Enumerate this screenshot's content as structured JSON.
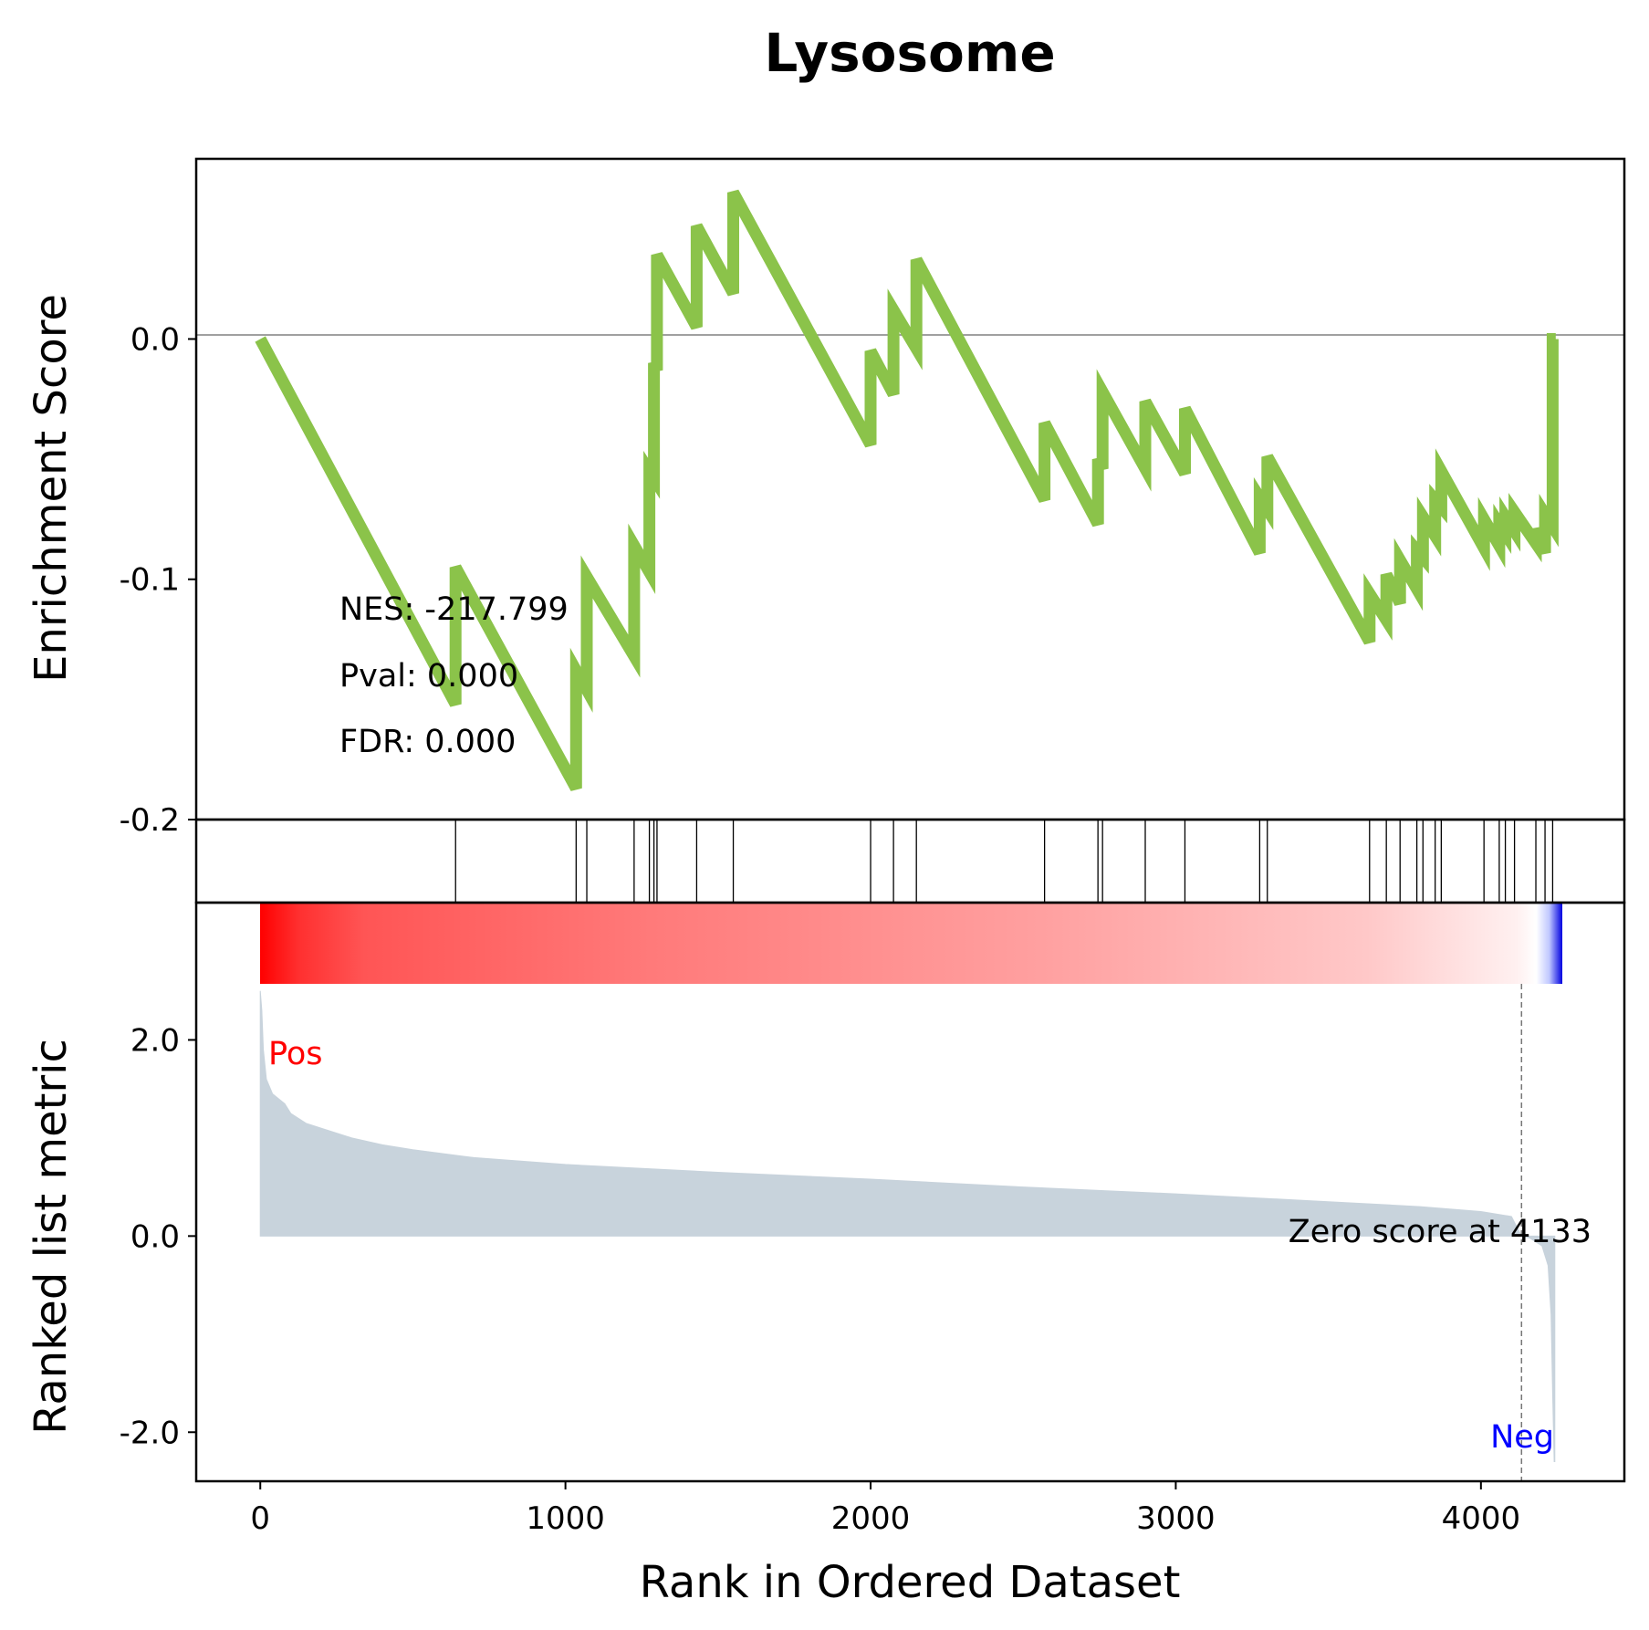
{
  "chart_data": {
    "type": "line",
    "title": "Lysosome",
    "xlabel": "Rank in Ordered Dataset",
    "xlim": [
      -210,
      4470
    ],
    "x_ticks": [
      "0",
      "1000",
      "2000",
      "3000",
      "4000"
    ],
    "x_tick_values": [
      0,
      1000,
      2000,
      3000,
      4000
    ],
    "enrichment": {
      "ylabel": "Enrichment Score",
      "ylim": [
        -0.2,
        0.075
      ],
      "y_ticks": [
        "0.0",
        "-0.1",
        "-0.2"
      ],
      "y_tick_values": [
        0.0,
        -0.1,
        -0.2
      ],
      "line_color": "#8bc34a",
      "points": [
        [
          0,
          0.0
        ],
        [
          640,
          -0.152
        ],
        [
          640,
          -0.095
        ],
        [
          1035,
          -0.187
        ],
        [
          1035,
          -0.138
        ],
        [
          1070,
          -0.146
        ],
        [
          1070,
          -0.099
        ],
        [
          1225,
          -0.132
        ],
        [
          1225,
          -0.086
        ],
        [
          1275,
          -0.097
        ],
        [
          1275,
          -0.055
        ],
        [
          1290,
          -0.058
        ],
        [
          1290,
          -0.01
        ],
        [
          1300,
          -0.013
        ],
        [
          1300,
          0.035
        ],
        [
          1430,
          0.005
        ],
        [
          1430,
          0.047
        ],
        [
          1550,
          0.019
        ],
        [
          1550,
          0.061
        ],
        [
          2000,
          -0.044
        ],
        [
          2000,
          -0.005
        ],
        [
          2075,
          -0.023
        ],
        [
          2075,
          0.012
        ],
        [
          2150,
          -0.004
        ],
        [
          2150,
          0.033
        ],
        [
          2570,
          -0.067
        ],
        [
          2570,
          -0.035
        ],
        [
          2745,
          -0.077
        ],
        [
          2745,
          -0.05
        ],
        [
          2760,
          -0.054
        ],
        [
          2760,
          -0.022
        ],
        [
          2900,
          -0.054
        ],
        [
          2900,
          -0.026
        ],
        [
          3030,
          -0.056
        ],
        [
          3030,
          -0.029
        ],
        [
          3275,
          -0.089
        ],
        [
          3275,
          -0.066
        ],
        [
          3300,
          -0.071
        ],
        [
          3300,
          -0.049
        ],
        [
          3635,
          -0.126
        ],
        [
          3635,
          -0.106
        ],
        [
          3690,
          -0.117
        ],
        [
          3690,
          -0.098
        ],
        [
          3735,
          -0.11
        ],
        [
          3735,
          -0.092
        ],
        [
          3790,
          -0.104
        ],
        [
          3790,
          -0.088
        ],
        [
          3810,
          -0.091
        ],
        [
          3810,
          -0.074
        ],
        [
          3850,
          -0.082
        ],
        [
          3850,
          -0.067
        ],
        [
          3870,
          -0.07
        ],
        [
          3870,
          -0.055
        ],
        [
          4010,
          -0.087
        ],
        [
          4010,
          -0.075
        ],
        [
          4060,
          -0.086
        ],
        [
          4060,
          -0.077
        ],
        [
          4080,
          -0.081
        ],
        [
          4080,
          -0.074
        ],
        [
          4110,
          -0.08
        ],
        [
          4110,
          -0.072
        ],
        [
          4180,
          -0.085
        ],
        [
          4180,
          -0.079
        ],
        [
          4210,
          -0.089
        ],
        [
          4210,
          -0.073
        ],
        [
          4235,
          -0.078
        ],
        [
          4235,
          0.0
        ],
        [
          4245,
          0.0
        ]
      ]
    },
    "hits": [
      640,
      1035,
      1070,
      1225,
      1275,
      1290,
      1300,
      1430,
      1550,
      2000,
      2075,
      2150,
      2570,
      2745,
      2760,
      2900,
      3030,
      3275,
      3300,
      3635,
      3690,
      3735,
      3790,
      3810,
      3850,
      3870,
      4010,
      4060,
      4080,
      4110,
      4180,
      4210,
      4235
    ],
    "ranked_metric": {
      "ylabel": "Ranked list metric",
      "ylim": [
        -2.5,
        3.4
      ],
      "y_ticks": [
        "2.0",
        "0.0",
        "-2.0"
      ],
      "y_tick_values": [
        2.0,
        0.0,
        -2.0
      ],
      "fill_color": "#c8d3dc",
      "points": [
        [
          0,
          2.5
        ],
        [
          5,
          2.3
        ],
        [
          10,
          1.9
        ],
        [
          20,
          1.6
        ],
        [
          40,
          1.45
        ],
        [
          80,
          1.35
        ],
        [
          100,
          1.25
        ],
        [
          150,
          1.15
        ],
        [
          200,
          1.1
        ],
        [
          300,
          1.0
        ],
        [
          400,
          0.93
        ],
        [
          500,
          0.88
        ],
        [
          700,
          0.8
        ],
        [
          1000,
          0.73
        ],
        [
          1500,
          0.65
        ],
        [
          2000,
          0.58
        ],
        [
          2500,
          0.5
        ],
        [
          3000,
          0.43
        ],
        [
          3500,
          0.35
        ],
        [
          3800,
          0.3
        ],
        [
          4000,
          0.25
        ],
        [
          4100,
          0.2
        ],
        [
          4133,
          0.0
        ],
        [
          4160,
          -0.02
        ],
        [
          4200,
          -0.1
        ],
        [
          4220,
          -0.3
        ],
        [
          4230,
          -0.8
        ],
        [
          4235,
          -1.6
        ],
        [
          4240,
          -2.3
        ],
        [
          4242,
          -2.3
        ]
      ],
      "pos_label": "Pos",
      "neg_label": "Neg",
      "pos_color": "#ff0000",
      "neg_color": "#0000ff",
      "zero_score_label": "Zero score at 4133",
      "zero_score_at": 4133
    },
    "stats": {
      "nes": "NES: -217.799",
      "pval": "Pval: 0.000",
      "fdr": "FDR: 0.000"
    }
  }
}
